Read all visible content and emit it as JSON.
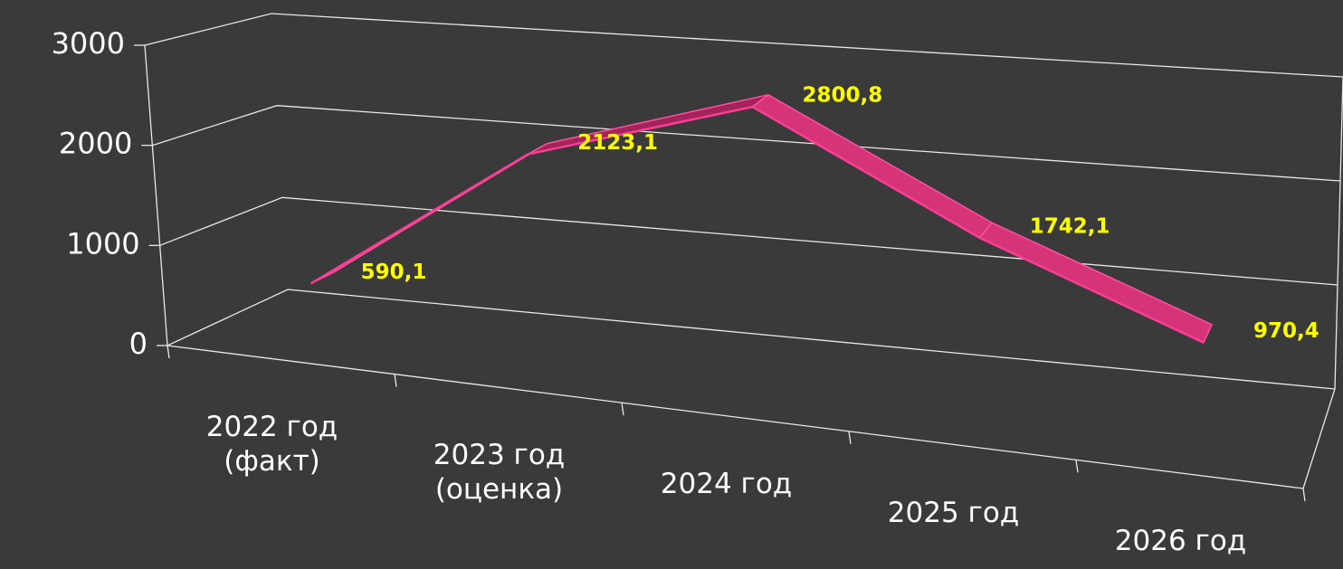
{
  "chart_data": {
    "type": "line3d",
    "categories": [
      "2022 год\n(факт)",
      "2023 год\n(оценка)",
      "2024 год",
      "2025 год",
      "2026 год"
    ],
    "values": [
      590.1,
      2123.1,
      2800.8,
      1742.1,
      970.4
    ],
    "value_labels": [
      "590,1",
      "2123,1",
      "2800,8",
      "1742,1",
      "970,4"
    ],
    "color": "#d63478",
    "ylim": [
      0,
      3000
    ],
    "yticks": [
      0,
      1000,
      2000,
      3000
    ],
    "grid": true
  }
}
